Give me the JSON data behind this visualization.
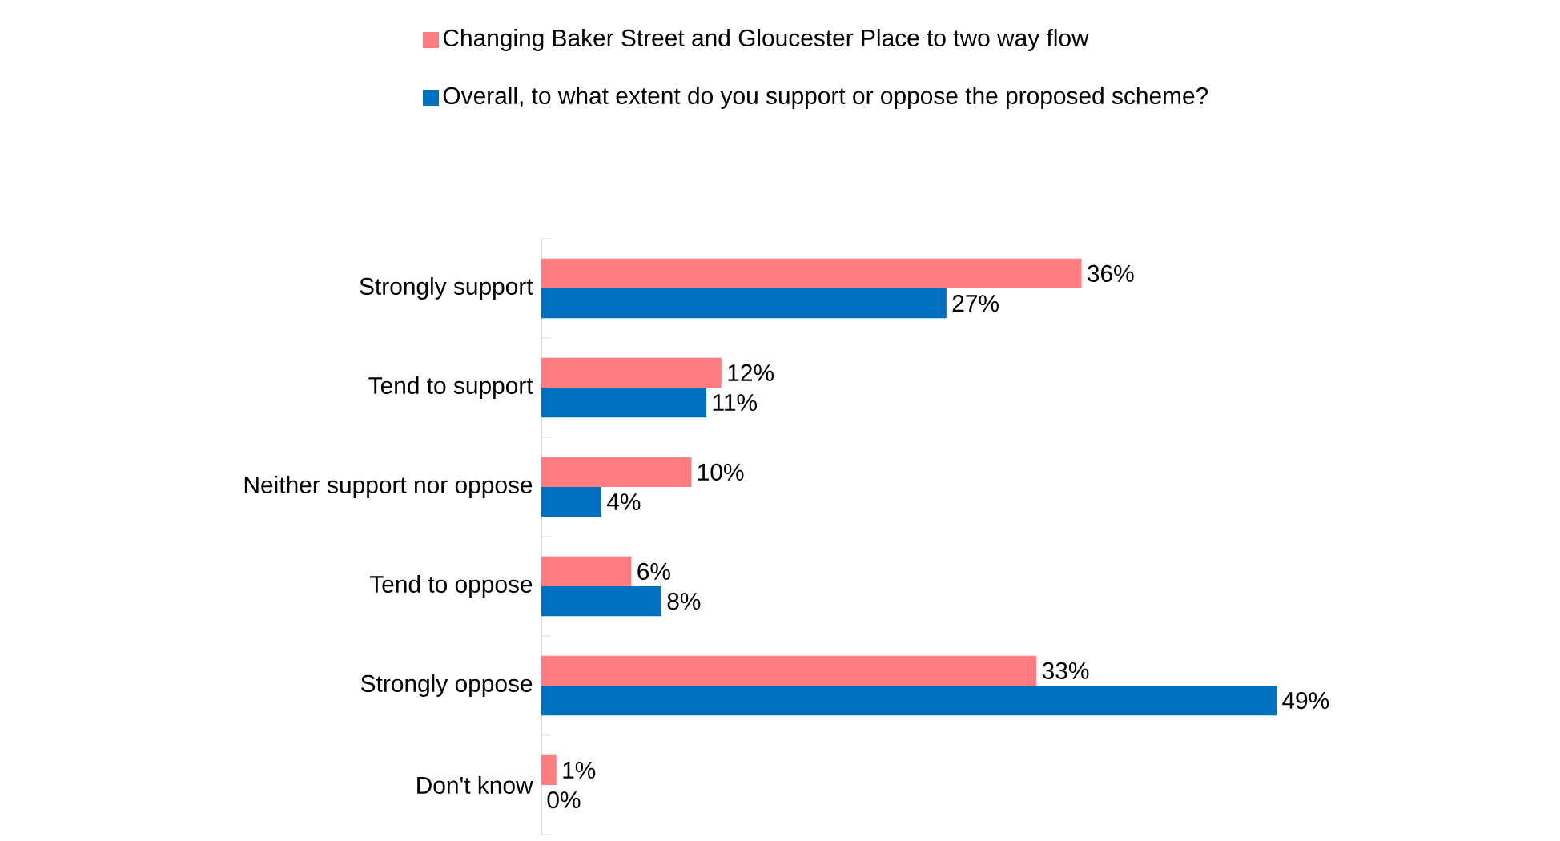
{
  "chart_data": {
    "type": "bar",
    "orientation": "horizontal",
    "legend": "top",
    "categories": [
      "Strongly support",
      "Tend to support",
      "Neither support nor oppose",
      "Tend to oppose",
      "Strongly oppose",
      "Don't know"
    ],
    "series": [
      {
        "name": "Changing Baker Street and Gloucester Place to two way flow",
        "color": "#ff7c80",
        "values": [
          36,
          12,
          10,
          6,
          33,
          1
        ],
        "value_labels": [
          "36%",
          "12%",
          "10%",
          "6%",
          "33%",
          "1%"
        ]
      },
      {
        "name": "Overall, to what extent do you support or oppose the proposed scheme?",
        "color": "#0070c0",
        "values": [
          27,
          11,
          4,
          8,
          49,
          0
        ],
        "value_labels": [
          "27%",
          "11%",
          "4%",
          "8%",
          "49%",
          "0%"
        ]
      }
    ]
  }
}
